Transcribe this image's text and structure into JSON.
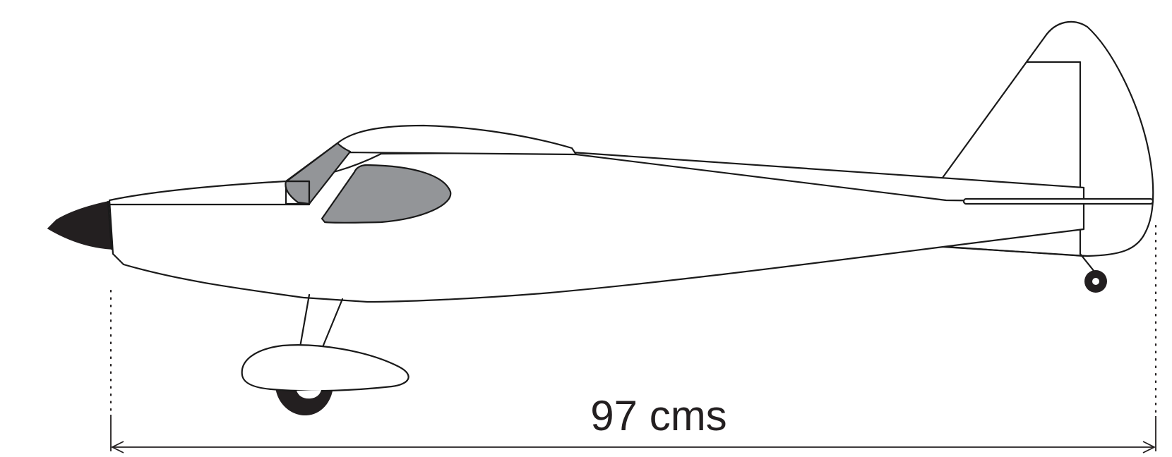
{
  "diagram": {
    "dimension_label": "97 cms",
    "colors": {
      "outline": "#1a1a1a",
      "glass": "#939598",
      "spinner": "#231f20",
      "background": "#ffffff"
    }
  }
}
